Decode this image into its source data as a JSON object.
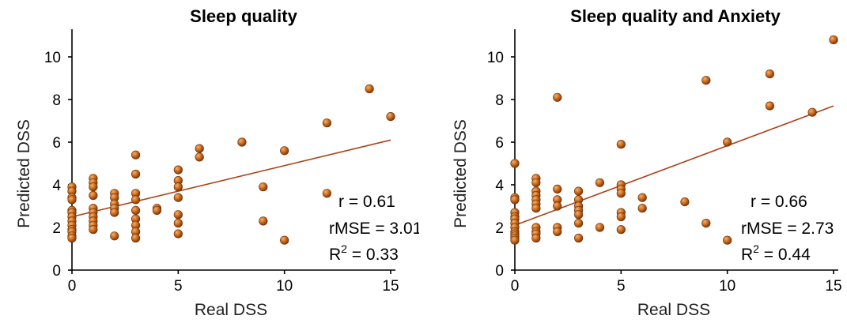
{
  "colors": {
    "point": "#c8661a",
    "trend": "#a9441a",
    "axis": "#000000"
  },
  "chart_data": [
    {
      "type": "scatter",
      "title": "Sleep quality",
      "xlabel": "Real DSS",
      "ylabel": "Predicted DSS",
      "xlim": [
        0,
        15
      ],
      "ylim": [
        0,
        11
      ],
      "x_ticks": [
        "0",
        "5",
        "10",
        "15"
      ],
      "y_ticks": [
        "0",
        "2",
        "4",
        "6",
        "8",
        "10"
      ],
      "grid": false,
      "trendline": {
        "x": [
          0,
          15
        ],
        "y": [
          2.5,
          6.1
        ]
      },
      "stats": {
        "r": "r = 0.61",
        "rmse": "rMSE = 3.01",
        "r2_prefix": "R",
        "r2_sup": "2",
        "r2_suffix": " = 0.33"
      },
      "points": [
        [
          0,
          3.9
        ],
        [
          0,
          3.7
        ],
        [
          0,
          3.4
        ],
        [
          0,
          3.3
        ],
        [
          0,
          2.8
        ],
        [
          0,
          2.7
        ],
        [
          0,
          2.5
        ],
        [
          0,
          2.3
        ],
        [
          0,
          2.1
        ],
        [
          0,
          1.9
        ],
        [
          0,
          1.8
        ],
        [
          0,
          1.6
        ],
        [
          0,
          1.5
        ],
        [
          1,
          4.3
        ],
        [
          1,
          4.1
        ],
        [
          1,
          3.9
        ],
        [
          1,
          3.5
        ],
        [
          1,
          2.9
        ],
        [
          1,
          2.7
        ],
        [
          1,
          2.5
        ],
        [
          1,
          2.3
        ],
        [
          1,
          2.1
        ],
        [
          1,
          1.9
        ],
        [
          2,
          3.6
        ],
        [
          2,
          3.4
        ],
        [
          2,
          3.1
        ],
        [
          2,
          2.9
        ],
        [
          2,
          2.7
        ],
        [
          2,
          1.6
        ],
        [
          3,
          5.4
        ],
        [
          3,
          4.5
        ],
        [
          3,
          3.6
        ],
        [
          3,
          3.3
        ],
        [
          3,
          2.8
        ],
        [
          3,
          2.4
        ],
        [
          3,
          2.1
        ],
        [
          3,
          1.8
        ],
        [
          3,
          1.5
        ],
        [
          4,
          2.9
        ],
        [
          4,
          2.8
        ],
        [
          5,
          4.7
        ],
        [
          5,
          4.2
        ],
        [
          5,
          3.9
        ],
        [
          5,
          3.4
        ],
        [
          5,
          2.6
        ],
        [
          5,
          2.2
        ],
        [
          5,
          1.7
        ],
        [
          6,
          5.7
        ],
        [
          6,
          5.3
        ],
        [
          8,
          6.0
        ],
        [
          9,
          3.9
        ],
        [
          9,
          2.3
        ],
        [
          10,
          5.6
        ],
        [
          10,
          1.4
        ],
        [
          12,
          6.9
        ],
        [
          12,
          3.6
        ],
        [
          14,
          8.5
        ],
        [
          15,
          7.2
        ]
      ]
    },
    {
      "type": "scatter",
      "title": "Sleep quality and Anxiety",
      "xlabel": "Real DSS",
      "ylabel": "Predicted DSS",
      "xlim": [
        0,
        15
      ],
      "ylim": [
        0,
        11
      ],
      "x_ticks": [
        "0",
        "5",
        "10",
        "15"
      ],
      "y_ticks": [
        "0",
        "2",
        "4",
        "6",
        "8",
        "10"
      ],
      "grid": false,
      "trendline": {
        "x": [
          0,
          15
        ],
        "y": [
          2.1,
          7.7
        ]
      },
      "stats": {
        "r": "r = 0.66",
        "rmse": "rMSE = 2.73",
        "r2_prefix": "R",
        "r2_sup": "2",
        "r2_suffix": " = 0.44"
      },
      "points": [
        [
          0,
          5.0
        ],
        [
          0,
          3.4
        ],
        [
          0,
          3.3
        ],
        [
          0,
          2.7
        ],
        [
          0,
          2.5
        ],
        [
          0,
          2.4
        ],
        [
          0,
          2.2
        ],
        [
          0,
          2.0
        ],
        [
          0,
          1.8
        ],
        [
          0,
          1.7
        ],
        [
          0,
          1.6
        ],
        [
          0,
          1.5
        ],
        [
          0,
          1.4
        ],
        [
          1,
          4.3
        ],
        [
          1,
          4.1
        ],
        [
          1,
          3.7
        ],
        [
          1,
          3.5
        ],
        [
          1,
          3.3
        ],
        [
          1,
          3.1
        ],
        [
          1,
          2.9
        ],
        [
          1,
          2.0
        ],
        [
          1,
          1.8
        ],
        [
          1,
          1.7
        ],
        [
          1,
          1.5
        ],
        [
          2,
          8.1
        ],
        [
          2,
          3.8
        ],
        [
          2,
          3.3
        ],
        [
          2,
          3.0
        ],
        [
          2,
          2.0
        ],
        [
          2,
          1.8
        ],
        [
          3,
          3.7
        ],
        [
          3,
          3.3
        ],
        [
          3,
          3.0
        ],
        [
          3,
          2.8
        ],
        [
          3,
          2.6
        ],
        [
          3,
          2.2
        ],
        [
          3,
          1.5
        ],
        [
          4,
          4.1
        ],
        [
          4,
          2.0
        ],
        [
          5,
          5.9
        ],
        [
          5,
          4.0
        ],
        [
          5,
          3.8
        ],
        [
          5,
          3.6
        ],
        [
          5,
          2.7
        ],
        [
          5,
          2.5
        ],
        [
          5,
          1.9
        ],
        [
          6,
          3.4
        ],
        [
          6,
          2.9
        ],
        [
          8,
          3.2
        ],
        [
          9,
          8.9
        ],
        [
          9,
          2.2
        ],
        [
          10,
          6.0
        ],
        [
          10,
          1.4
        ],
        [
          12,
          9.2
        ],
        [
          12,
          7.7
        ],
        [
          14,
          7.4
        ],
        [
          15,
          10.8
        ]
      ]
    }
  ]
}
